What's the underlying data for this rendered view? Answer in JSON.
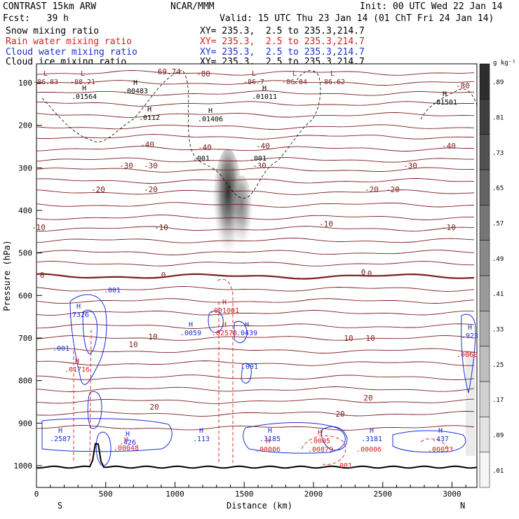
{
  "header": {
    "model": "CONTRAST 15km ARW",
    "center": "NCAR/MMM",
    "init": "Init: 00 UTC Wed 22 Jan 14",
    "fcst": "Fcst:   39 h",
    "valid": "Valid: 15 UTC Thu 23 Jan 14 (01 ChT Fri 24 Jan 14)",
    "fields": [
      {
        "name": "Snow mixing ratio",
        "xy": "XY= 235.3,  2.5 to 235.3,214.7",
        "color": "#000000"
      },
      {
        "name": "Rain water mixing ratio",
        "xy": "XY= 235.3,  2.5 to 235.3,214.7",
        "color": "#d42020"
      },
      {
        "name": "Cloud water mixing ratio",
        "xy": "XY= 235.3,  2.5 to 235.3,214.7",
        "color": "#1a2fd6"
      },
      {
        "name": "Cloud ice mixing ratio",
        "xy": "XY= 235.3,  2.5 to 235.3,214.7",
        "color": "#000000"
      }
    ]
  },
  "chart_data": {
    "type": "contour",
    "xlabel": "Distance (km)",
    "ylabel": "Pressure (hPa)",
    "xlim": [
      0,
      3180
    ],
    "ylim": [
      1050,
      50
    ],
    "x_ticks": [
      "0",
      "500",
      "1000",
      "1500",
      "2000",
      "2500",
      "3000"
    ],
    "y_ticks": [
      "100",
      "200",
      "300",
      "400",
      "500",
      "600",
      "700",
      "800",
      "900",
      "1000"
    ],
    "x_end_labels": {
      "left": "S",
      "right": "N"
    },
    "colorbar": {
      "unit": "g kg⁻¹",
      "levels": [
        ".01",
        ".09",
        ".17",
        ".25",
        ".33",
        ".41",
        ".49",
        ".57",
        ".65",
        ".73",
        ".81",
        ".89"
      ]
    },
    "temperature_labels": [
      "-80",
      "-80",
      "-69.74",
      "-40",
      "-40",
      "-40",
      "-40",
      "-30",
      "-30",
      "-30",
      "-30",
      "-20",
      "-20",
      "-20",
      "-20",
      "-10",
      "-10",
      "-10",
      "-10",
      "0",
      "0",
      "0",
      "0",
      "10",
      "10",
      "10",
      "10",
      "20",
      "20",
      "20"
    ],
    "extrema_labels": [
      {
        "mark": "L",
        "value": "-86.83"
      },
      {
        "mark": "L",
        "value": "-88.21"
      },
      {
        "mark": "H",
        "value": ".00483"
      },
      {
        "mark": "H",
        "value": ".01564"
      },
      {
        "mark": "H",
        "value": ".0112"
      },
      {
        "mark": "H",
        "value": ".01406"
      },
      {
        "mark": "L",
        "value": "-86.7"
      },
      {
        "mark": "L",
        "value": "-86.84"
      },
      {
        "mark": "L",
        "value": "-86.62"
      },
      {
        "mark": "H",
        "value": ".01011"
      },
      {
        "mark": "H",
        "value": ".01501"
      },
      {
        "mark": "",
        "value": ".001"
      },
      {
        "mark": "",
        "value": ".001"
      },
      {
        "mark": "H",
        "value": ".7326"
      },
      {
        "mark": "",
        "value": ".001"
      },
      {
        "mark": "H",
        "value": ".0059"
      },
      {
        "mark": "H",
        "value": ".0439"
      },
      {
        "mark": "",
        "value": ".001"
      },
      {
        "mark": "",
        "value": ".001"
      },
      {
        "mark": "H",
        "value": ".2587"
      },
      {
        "mark": "H",
        "value": ".426"
      },
      {
        "mark": "H",
        "value": ".113"
      },
      {
        "mark": "H",
        "value": ".3185"
      },
      {
        "mark": "H",
        "value": ".3181"
      },
      {
        "mark": "H",
        "value": ".437"
      },
      {
        "mark": "H",
        "value": ".923"
      },
      {
        "mark": "H",
        "value": ".01716"
      },
      {
        "mark": "H",
        "value": ".001001"
      },
      {
        "mark": "H",
        "value": ".02578"
      },
      {
        "mark": "H",
        "value": ".00048"
      },
      {
        "mark": "H",
        "value": ".00006"
      },
      {
        "mark": "H",
        "value": ".0005"
      },
      {
        "mark": "",
        "value": ".00879"
      },
      {
        "mark": "",
        "value": ".001"
      },
      {
        "mark": "",
        "value": ".00006"
      },
      {
        "mark": "",
        "value": ".00053"
      },
      {
        "mark": "",
        "value": ".0060"
      }
    ]
  }
}
